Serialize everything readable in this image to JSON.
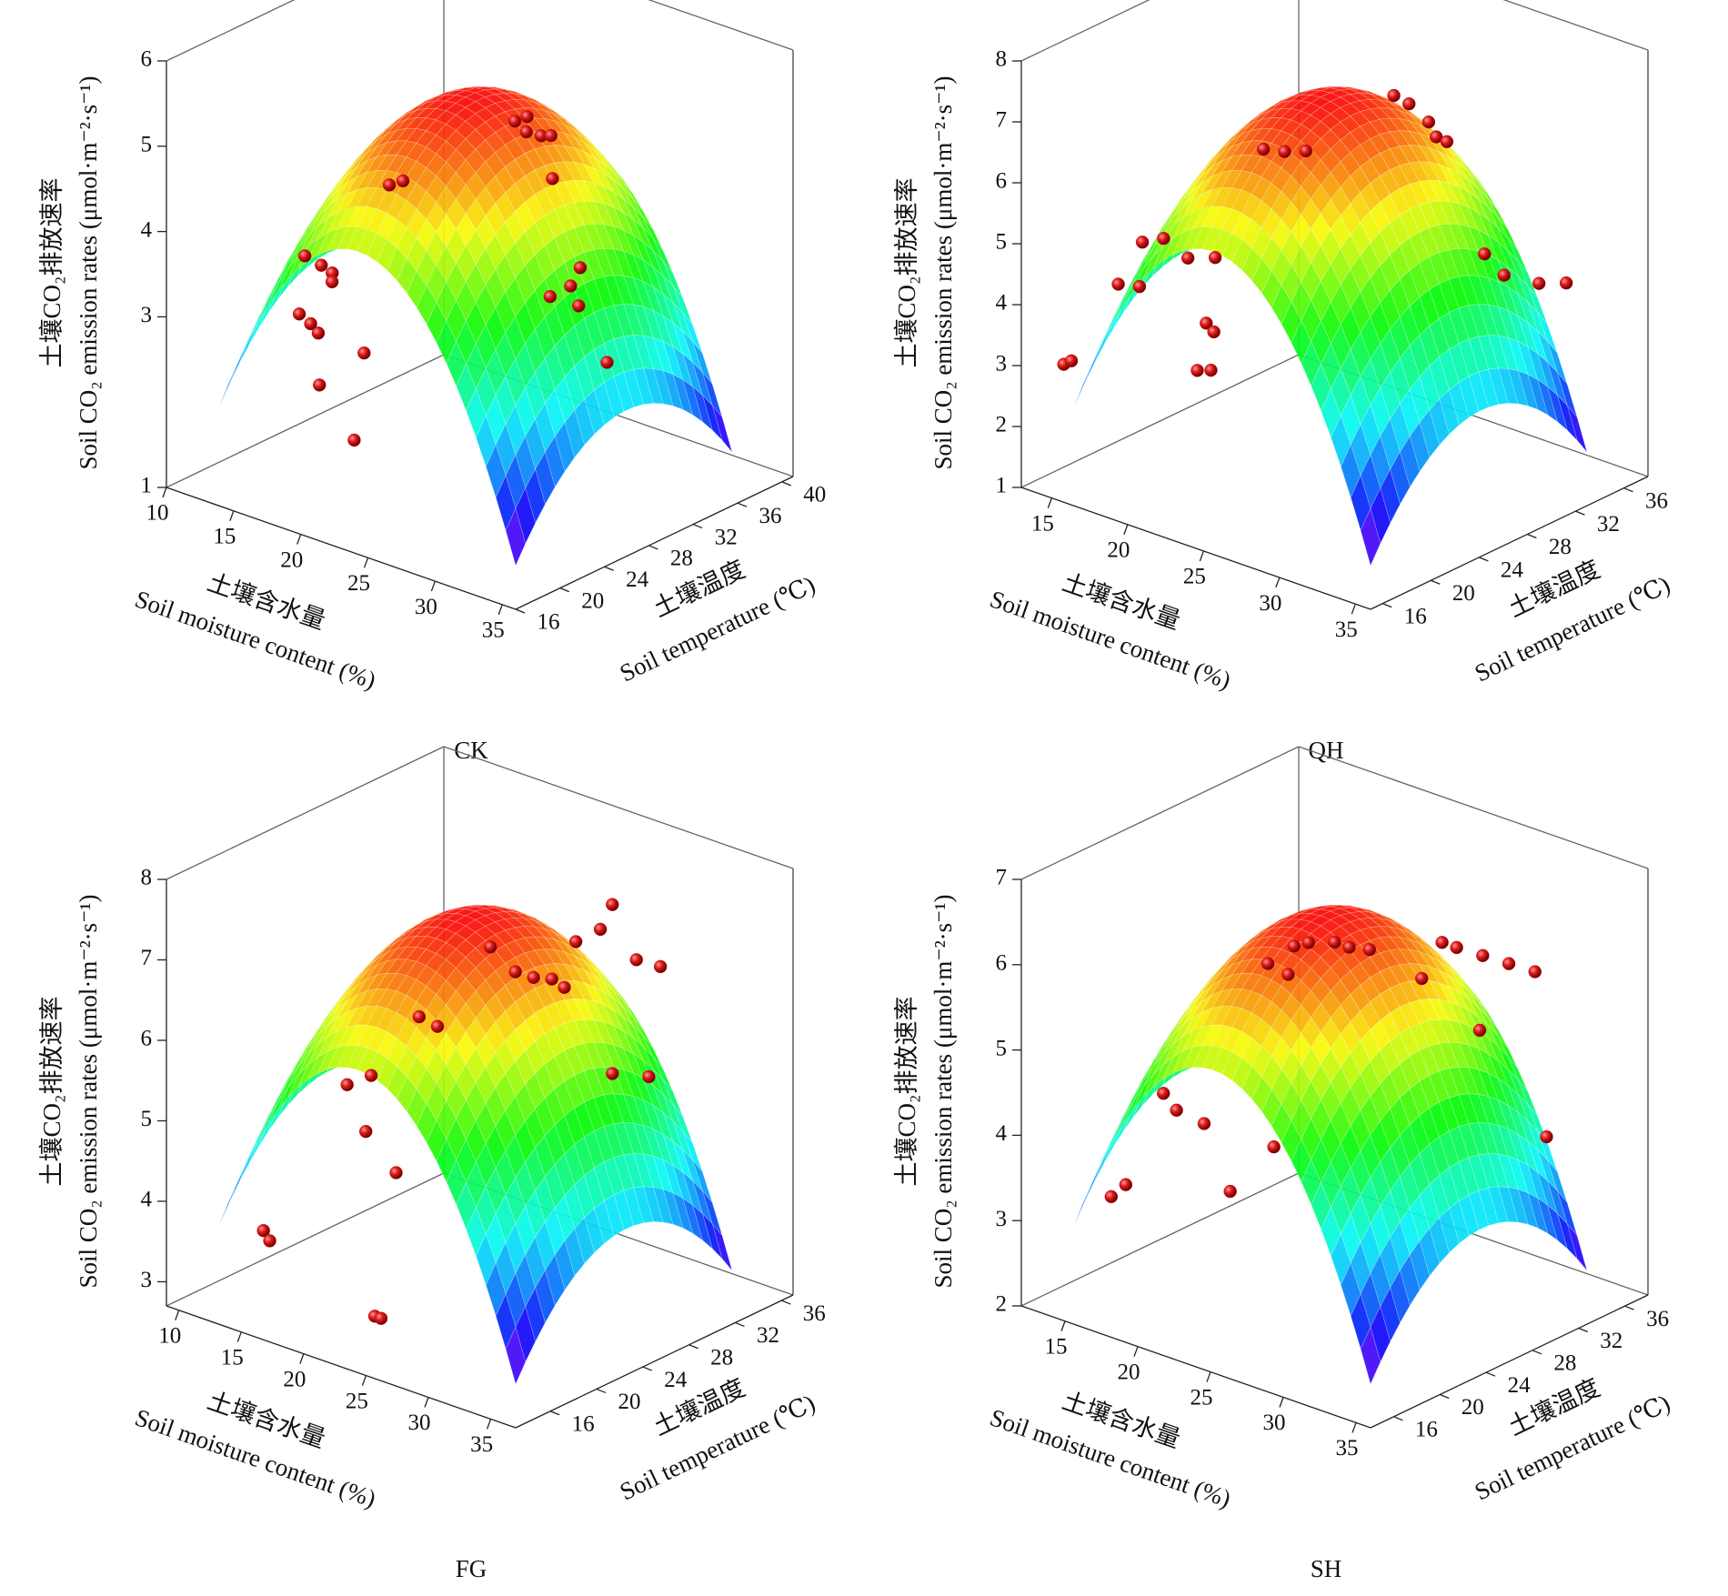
{
  "chart_data": [
    {
      "type": "surface3d",
      "title": "CK",
      "xlabel": [
        "土壤含水量",
        "Soil moisture content (%)"
      ],
      "ylabel": [
        "土壤温度",
        "Soil temperature (℃)"
      ],
      "zlabel": [
        "土壤CO₂排放速率",
        "Soil CO₂ emission rates (μmol·m⁻²·s⁻¹)"
      ],
      "xlim": [
        10,
        36
      ],
      "xticks": [
        10,
        15,
        20,
        25,
        30,
        35
      ],
      "ylim": [
        16,
        41
      ],
      "yticks": [
        16,
        20,
        24,
        28,
        32,
        36,
        40
      ],
      "zlim": [
        1,
        6
      ],
      "zticks": [
        1,
        3,
        4,
        5,
        6
      ],
      "color": "#cc1111",
      "x": [
        28.5,
        29,
        29.2,
        29.8,
        30.2,
        20.4,
        21,
        17.4,
        17.8,
        18.2,
        17,
        17.6,
        17,
        18,
        21,
        18.5,
        21.5,
        27.7,
        28,
        28.3,
        27,
        30,
        28
      ],
      "y": [
        25,
        25.5,
        25.2,
        25.8,
        26.2,
        23.5,
        24,
        21,
        21.5,
        21,
        20,
        19.8,
        19.5,
        20,
        20.5,
        19.5,
        19,
        31,
        31.5,
        31,
        30,
        31.5,
        29
      ],
      "z": [
        5.75,
        5.8,
        5.65,
        5.6,
        5.6,
        4.65,
        4.7,
        3.7,
        3.6,
        3.55,
        3.85,
        3.1,
        3.2,
        3.0,
        2.9,
        2.45,
        2.0,
        3.4,
        3.6,
        3.2,
        3.3,
        2.6,
        4.8
      ]
    },
    {
      "type": "surface3d",
      "title": "QH",
      "xlabel": [
        "土壤含水量",
        "Soil moisture content (%)"
      ],
      "ylabel": [
        "土壤温度",
        "Soil temperature (℃)"
      ],
      "zlabel": [
        "土壤CO₂排放速率",
        "Soil CO₂ emission rates (μmol·m⁻²·s⁻¹)"
      ],
      "xlim": [
        13,
        36
      ],
      "xticks": [
        15,
        20,
        25,
        30,
        35
      ],
      "ylim": [
        15,
        38
      ],
      "yticks": [
        16,
        20,
        24,
        28,
        32,
        36
      ],
      "zlim": [
        1,
        8
      ],
      "zticks": [
        1,
        2,
        3,
        4,
        5,
        6,
        7,
        8
      ],
      "color": "#cc1111",
      "x": [
        28,
        29,
        29.5,
        30,
        30.3,
        21,
        22,
        23,
        17,
        18,
        20,
        21,
        17,
        18,
        22,
        22.5,
        23,
        23.5,
        15,
        15.5,
        30,
        30.5,
        32,
        33
      ],
      "y": [
        27,
        27,
        28,
        28,
        28.5,
        25,
        25.5,
        26,
        20,
        20.5,
        20,
        21,
        18,
        18.5,
        19,
        19,
        17,
        17.5,
        16,
        16,
        32,
        33,
        34,
        35
      ],
      "z": [
        7.6,
        7.55,
        7.2,
        7.0,
        6.9,
        6.3,
        6.3,
        6.35,
        4.9,
        5.0,
        4.9,
        4.9,
        4.4,
        4.4,
        4.1,
        4.0,
        3.6,
        3.6,
        3.1,
        3.2,
        4.7,
        4.3,
        4.2,
        4.2
      ]
    },
    {
      "type": "surface3d",
      "title": "FG",
      "xlabel": [
        "土壤含水量",
        "Soil moisture content (%)"
      ],
      "ylabel": [
        "土壤温度",
        "Soil temperature (℃)"
      ],
      "zlabel": [
        "土壤CO₂排放速率",
        "Soil CO₂ emission rates (μmol·m⁻²·s⁻¹)"
      ],
      "xlim": [
        9,
        37
      ],
      "xticks": [
        10,
        15,
        20,
        25,
        30,
        35
      ],
      "ylim": [
        13,
        37
      ],
      "yticks": [
        16,
        20,
        24,
        28,
        32,
        36
      ],
      "zlim": [
        2.7,
        8
      ],
      "zticks": [
        3,
        4,
        5,
        6,
        7,
        8
      ],
      "color": "#cc1111",
      "x": [
        29,
        28.5,
        27,
        22,
        24,
        25,
        26,
        27,
        30,
        31,
        20,
        21,
        17,
        18,
        18.5,
        20,
        29,
        31,
        14,
        14.5,
        22,
        22.5
      ],
      "y": [
        30,
        29.5,
        29,
        27,
        27,
        27.5,
        28,
        28,
        31,
        32,
        23,
        23.5,
        20,
        21,
        20,
        21,
        30,
        31,
        16,
        16,
        17,
        17
      ],
      "z": [
        7.6,
        7.3,
        7.1,
        6.9,
        6.7,
        6.65,
        6.65,
        6.6,
        6.9,
        6.8,
        6.2,
        6.1,
        5.4,
        5.5,
        4.9,
        4.4,
        5.5,
        5.5,
        3.7,
        3.6,
        3.0,
        3.0
      ]
    },
    {
      "type": "surface3d",
      "title": "SH",
      "xlabel": [
        "土壤含水量",
        "Soil moisture content (%)"
      ],
      "ylabel": [
        "土壤温度",
        "Soil temperature (℃)"
      ],
      "zlabel": [
        "土壤CO₂排放速率",
        "Soil CO₂ emission rates (μmol·m⁻²·s⁻¹)"
      ],
      "xlim": [
        12,
        36
      ],
      "xticks": [
        15,
        20,
        25,
        30,
        35
      ],
      "ylim": [
        14,
        38
      ],
      "yticks": [
        16,
        20,
        24,
        28,
        32,
        36
      ],
      "zlim": [
        2,
        7
      ],
      "zticks": [
        2,
        3,
        4,
        5,
        6,
        7
      ],
      "color": "#cc1111",
      "x": [
        22,
        23,
        24,
        25,
        26,
        29,
        30,
        31,
        32,
        33,
        21,
        22,
        28,
        30,
        17,
        17.5,
        19,
        20,
        15,
        16,
        33,
        23
      ],
      "y": [
        25,
        25,
        26,
        26,
        26.5,
        29,
        29,
        30,
        31,
        32,
        24,
        24.5,
        28.5,
        31,
        20,
        20.5,
        21,
        22,
        18,
        18,
        33,
        22
      ],
      "z": [
        6.1,
        6.2,
        6.2,
        6.2,
        6.2,
        6.3,
        6.3,
        6.2,
        6.1,
        6.0,
        5.9,
        5.8,
        5.85,
        5.2,
        4.4,
        4.2,
        4.1,
        3.3,
        3.2,
        3.4,
        4.0,
        4.0
      ]
    }
  ]
}
